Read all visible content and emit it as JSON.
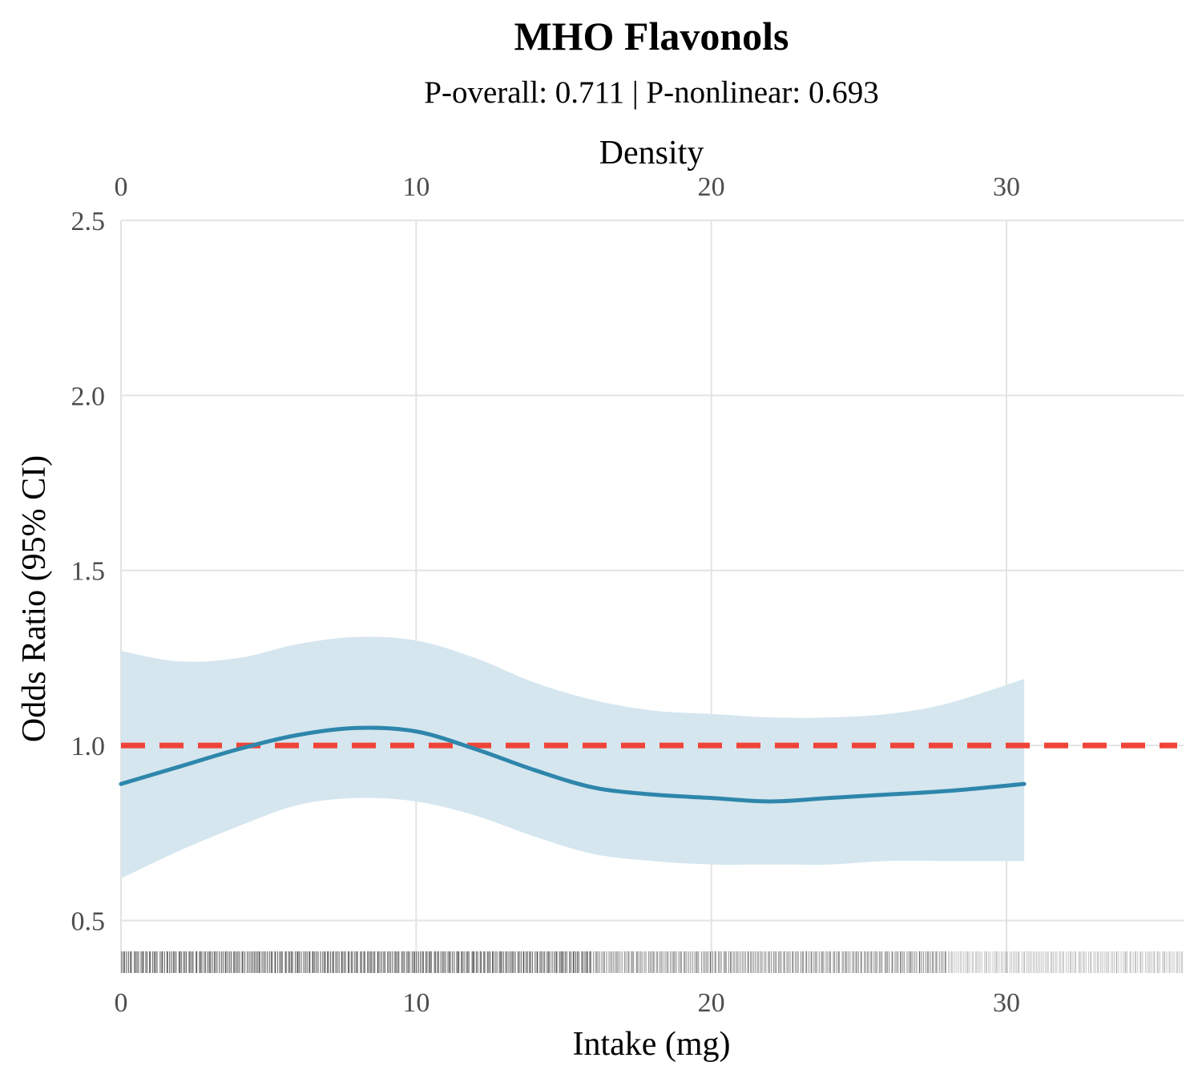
{
  "chart_data": {
    "type": "line",
    "title": "MHO Flavonols",
    "subtitle": "P-overall: 0.711 | P-nonlinear: 0.693",
    "xlabel": "Intake (mg)",
    "ylabel": "Odds Ratio (95% CI)",
    "x2label": "Density",
    "xlim": [
      0,
      36
    ],
    "ylim": [
      0.35,
      2.5
    ],
    "xticks": [
      "0",
      "10",
      "20",
      "30"
    ],
    "yticks": [
      "0.5",
      "1.0",
      "1.5",
      "2.0",
      "2.5"
    ],
    "grid": true,
    "reference_line": {
      "y": 1.0,
      "color": "#f04438",
      "style": "dashed"
    },
    "series": [
      {
        "line_color": "#2e86ab",
        "band_color": "#d5e6ef",
        "x": [
          0,
          2,
          4,
          6,
          8,
          10,
          12,
          14,
          16,
          18,
          20,
          22,
          24,
          26,
          28,
          30.6
        ],
        "y": [
          0.89,
          0.94,
          0.99,
          1.03,
          1.05,
          1.04,
          0.99,
          0.93,
          0.88,
          0.86,
          0.85,
          0.84,
          0.85,
          0.86,
          0.87,
          0.89
        ],
        "lower": [
          0.62,
          0.7,
          0.77,
          0.83,
          0.85,
          0.84,
          0.8,
          0.74,
          0.69,
          0.67,
          0.66,
          0.66,
          0.66,
          0.67,
          0.67,
          0.67
        ],
        "upper": [
          1.27,
          1.24,
          1.25,
          1.29,
          1.31,
          1.3,
          1.25,
          1.18,
          1.13,
          1.1,
          1.09,
          1.08,
          1.08,
          1.09,
          1.12,
          1.19
        ]
      }
    ],
    "rug": {
      "min": 0,
      "max": 36
    }
  }
}
